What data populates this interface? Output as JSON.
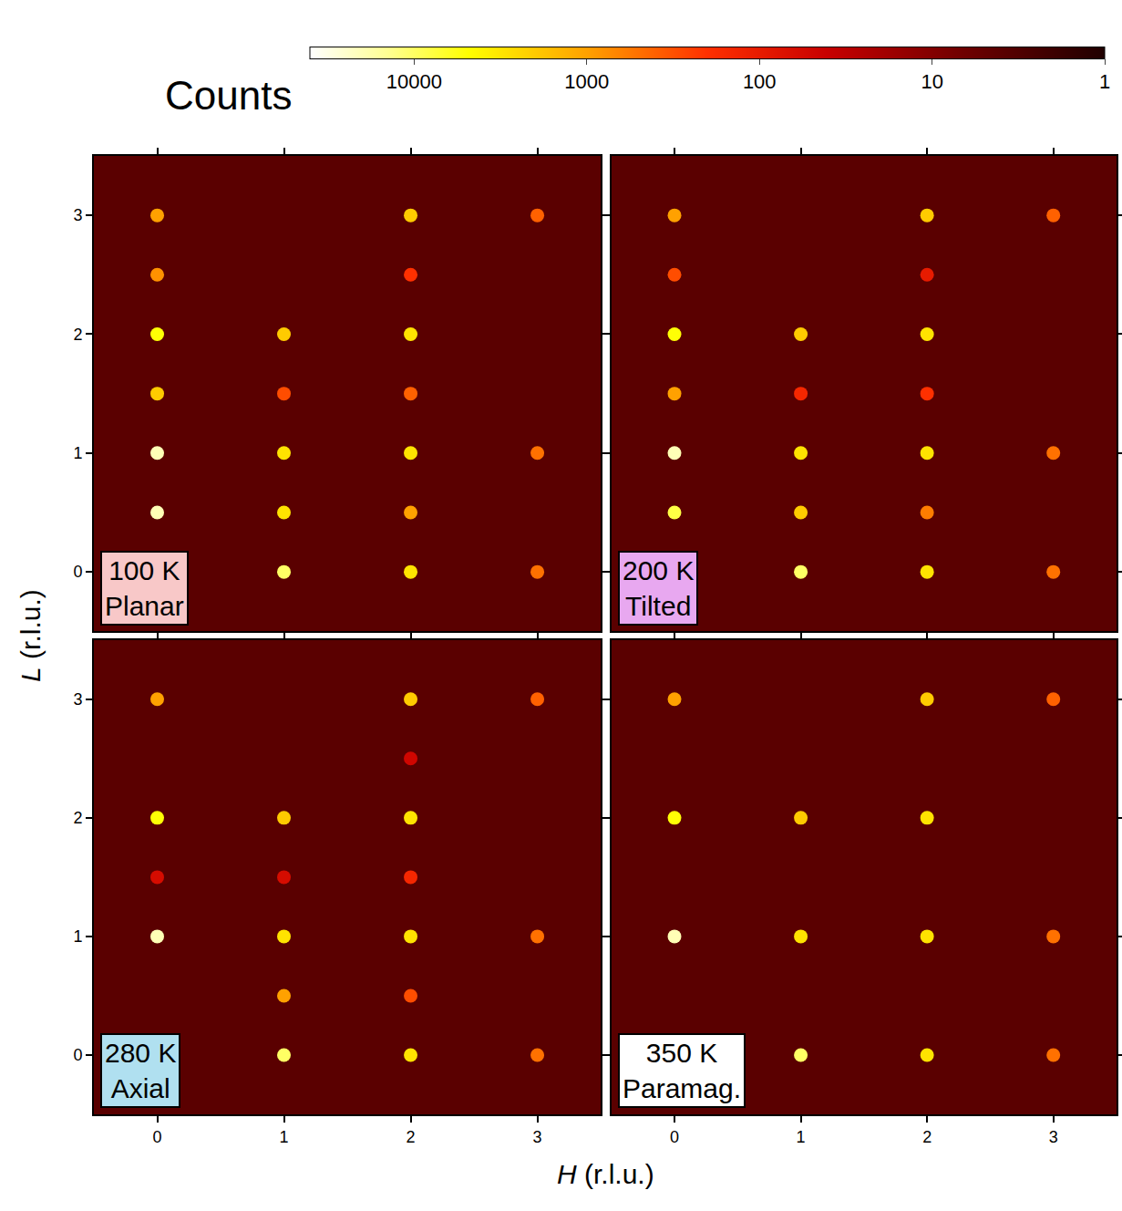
{
  "chart_data": {
    "type": "scatter",
    "log": true,
    "x_label": "H (r.l.u.)",
    "y_label": "L (r.l.u.)",
    "colorbar": {
      "title": "Counts",
      "clim": [
        1,
        40000
      ],
      "ticks": [
        10000,
        1000,
        100,
        10,
        1
      ]
    },
    "panels": [
      {
        "temperature": "100 K",
        "phase": "Planar",
        "color": "#f8c8c8",
        "tick_labels": "y",
        "xlim": [
          -0.5,
          3.5
        ],
        "ylim": [
          -0.5,
          3.5
        ],
        "xticks": [
          0,
          1,
          2,
          3
        ],
        "yticks": [
          0,
          1,
          2,
          3
        ],
        "x": [
          0,
          0,
          0,
          0,
          0,
          0,
          1,
          1,
          1,
          1,
          1,
          2,
          2,
          2,
          2,
          2,
          2,
          2,
          3,
          3,
          3
        ],
        "y": [
          0.5,
          1,
          1.5,
          2,
          2.5,
          3,
          0,
          0.5,
          1,
          1.5,
          2,
          0,
          0.5,
          1,
          1.5,
          2,
          2.5,
          3,
          0,
          1,
          3
        ],
        "values": [
          20000,
          20000,
          2000,
          5000,
          800,
          1000,
          10000,
          3000,
          3000,
          300,
          2000,
          3000,
          1000,
          3000,
          400,
          3000,
          200,
          2000,
          500,
          500,
          400
        ]
      },
      {
        "temperature": "200 K",
        "phase": "Tilted",
        "color": "#e8a8f0",
        "tick_labels": false,
        "xlim": [
          -0.5,
          3.5
        ],
        "ylim": [
          -0.5,
          3.5
        ],
        "xticks": [
          0,
          1,
          2,
          3
        ],
        "yticks": [
          0,
          1,
          2,
          3
        ],
        "x": [
          0,
          0,
          0,
          0,
          0,
          0,
          1,
          1,
          1,
          1,
          1,
          2,
          2,
          2,
          2,
          2,
          2,
          2,
          3,
          3,
          3
        ],
        "y": [
          0.5,
          1,
          1.5,
          2,
          2.5,
          3,
          0,
          0.5,
          1,
          1.5,
          2,
          0,
          0.5,
          1,
          1.5,
          2,
          2.5,
          3,
          0,
          1,
          3
        ],
        "values": [
          8000,
          20000,
          1000,
          5000,
          300,
          1000,
          10000,
          2000,
          3000,
          150,
          2000,
          3000,
          600,
          3000,
          200,
          3000,
          100,
          2000,
          500,
          500,
          400
        ]
      },
      {
        "temperature": "280 K",
        "phase": "Axial",
        "color": "#b0e0f0",
        "tick_labels": true,
        "xlim": [
          -0.5,
          3.5
        ],
        "ylim": [
          -0.5,
          3.5
        ],
        "xticks": [
          0,
          1,
          2,
          3
        ],
        "yticks": [
          0,
          1,
          2,
          3
        ],
        "x": [
          0,
          0,
          0,
          0,
          1,
          1,
          1,
          1,
          1,
          2,
          2,
          2,
          2,
          2,
          2,
          2,
          3,
          3,
          3
        ],
        "y": [
          1,
          1.5,
          2,
          3,
          0,
          0.5,
          1,
          1.5,
          2,
          0,
          0.5,
          1,
          1.5,
          2,
          2.5,
          3,
          0,
          1,
          3
        ],
        "values": [
          20000,
          60,
          5000,
          1000,
          10000,
          1000,
          3000,
          60,
          2000,
          3000,
          300,
          3000,
          150,
          3000,
          50,
          2000,
          500,
          500,
          400
        ]
      },
      {
        "temperature": "350 K",
        "phase": "Paramag.",
        "color": "#ffffff",
        "tick_labels": "x",
        "xlim": [
          -0.5,
          3.5
        ],
        "ylim": [
          -0.5,
          3.5
        ],
        "xticks": [
          0,
          1,
          2,
          3
        ],
        "yticks": [
          0,
          1,
          2,
          3
        ],
        "x": [
          0,
          0,
          0,
          1,
          1,
          1,
          2,
          2,
          2,
          2,
          3,
          3,
          3
        ],
        "y": [
          1,
          2,
          3,
          0,
          1,
          2,
          0,
          1,
          2,
          3,
          0,
          1,
          3
        ],
        "values": [
          20000,
          5000,
          1000,
          10000,
          3000,
          2000,
          3000,
          3000,
          3000,
          2000,
          500,
          500,
          400
        ]
      }
    ]
  }
}
